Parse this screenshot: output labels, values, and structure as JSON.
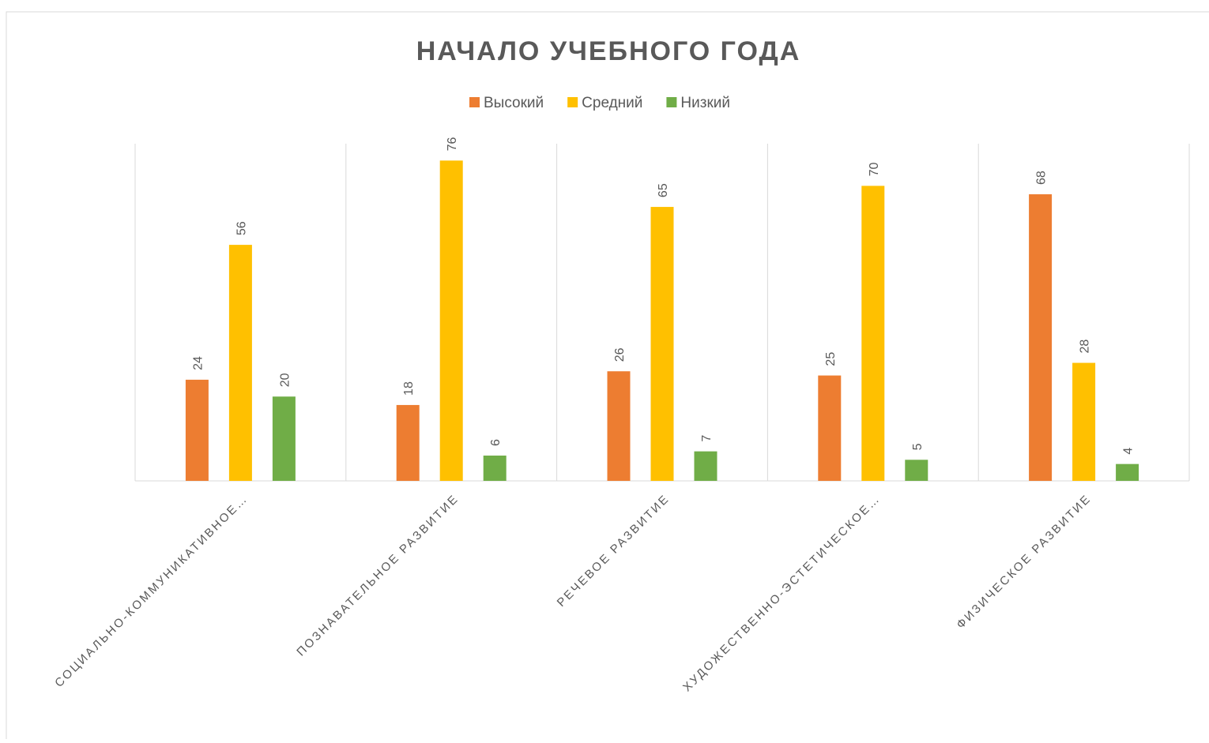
{
  "chart_data": {
    "type": "bar",
    "title": "НАЧАЛО УЧЕБНОГО ГОДА",
    "categories": [
      "СОЦИАЛЬНО-КОММУНИКАТИВНОЕ…",
      "ПОЗНАВАТЕЛЬНОЕ РАЗВИТИЕ",
      "РЕЧЕВОЕ РАЗВИТИЕ",
      "ХУДОЖЕСТВЕННО-ЭСТЕТИЧЕСКОЕ…",
      "ФИЗИЧЕСКОЕ РАЗВИТИЕ"
    ],
    "series": [
      {
        "name": "Высокий",
        "color": "#ed7d31",
        "values": [
          24,
          18,
          26,
          25,
          68
        ]
      },
      {
        "name": "Средний",
        "color": "#ffc000",
        "values": [
          56,
          76,
          65,
          70,
          28
        ]
      },
      {
        "name": "Низкий",
        "color": "#70ad47",
        "values": [
          20,
          6,
          7,
          5,
          4
        ]
      }
    ],
    "ylim": [
      0,
      80
    ],
    "legend": "top"
  }
}
